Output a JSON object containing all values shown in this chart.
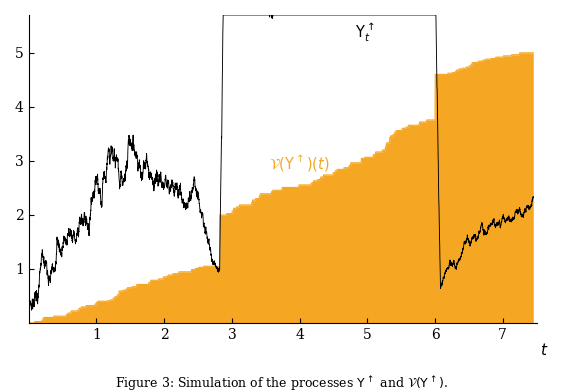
{
  "title": "Figure 3: Simulation of the processes Υ↑ and ν(Υ↑).",
  "xlabel": "t",
  "xlim": [
    0,
    7.5
  ],
  "ylim": [
    0,
    5.7
  ],
  "xticks": [
    1,
    2,
    3,
    4,
    5,
    6,
    7
  ],
  "yticks": [
    1,
    2,
    3,
    4,
    5
  ],
  "orange_color": "#F5A623",
  "black_color": "#000000",
  "background_color": "#ffffff"
}
